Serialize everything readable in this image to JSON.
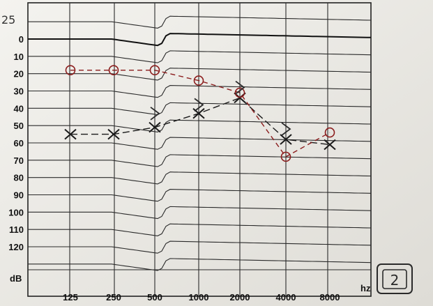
{
  "chart_data": {
    "type": "line",
    "title": "",
    "xlabel": "",
    "ylabel": "",
    "x_unit": "hz",
    "y_unit": "dB",
    "corner_mark": "25",
    "x": [
      125,
      250,
      500,
      1000,
      2000,
      4000,
      8000
    ],
    "x_tick_labels": [
      "125",
      "250",
      "500",
      "1000",
      "2000",
      "4000",
      "8000"
    ],
    "y_tick_labels": [
      "0",
      "10",
      "20",
      "30",
      "40",
      "50",
      "60",
      "70",
      "80",
      "90",
      "100",
      "110",
      "120"
    ],
    "ylim": [
      -10,
      130
    ],
    "y_inverted": true,
    "box_label": "2",
    "series": [
      {
        "symbol": "x",
        "color": "#1a1a1a",
        "values": [
          55,
          55,
          51,
          43,
          34,
          58,
          61
        ]
      },
      {
        "symbol": "o",
        "color": "#8b1c1c",
        "values": [
          18,
          18,
          18,
          24,
          31,
          68,
          54
        ]
      },
      {
        "symbol": ">",
        "color": "#2b2b2b",
        "values": [
          null,
          null,
          43,
          38,
          28,
          52,
          null
        ]
      }
    ]
  }
}
